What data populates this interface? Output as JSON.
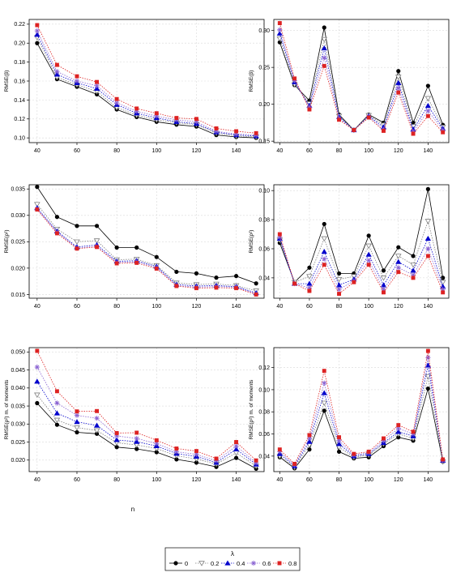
{
  "figure": {
    "xlabel": "n",
    "legend": {
      "title": "λ",
      "placement": "bottom-center",
      "entries": [
        {
          "label": "0",
          "color": "#000000",
          "marker": "circle",
          "line": "solid"
        },
        {
          "label": "0.2",
          "color": "#7f7f7f",
          "marker": "triangle-down",
          "line": "dotted"
        },
        {
          "label": "0.4",
          "color": "#0000cc",
          "marker": "triangle-up",
          "line": "dotted"
        },
        {
          "label": "0.6",
          "color": "#8a63d2",
          "marker": "star",
          "line": "dotted"
        },
        {
          "label": "0.8",
          "color": "#dd2222",
          "marker": "square",
          "line": "dotted"
        }
      ]
    }
  },
  "chart_data": [
    {
      "type": "line",
      "ylabel": "RMSE(β)",
      "x": [
        40,
        50,
        60,
        70,
        80,
        90,
        100,
        110,
        120,
        130,
        140,
        150
      ],
      "xticks": [
        40,
        60,
        80,
        100,
        120,
        140
      ],
      "xlim": [
        36,
        154
      ],
      "yticks": [
        0.1,
        0.12,
        0.14,
        0.16,
        0.18,
        0.2,
        0.22
      ],
      "ytick_labels": [
        "0.10",
        "0.12",
        "0.14",
        "0.16",
        "0.18",
        "0.20",
        "0.22"
      ],
      "ylim": [
        0.095,
        0.225
      ],
      "grid": true,
      "series": [
        {
          "name": "0",
          "values": [
            0.2,
            0.162,
            0.154,
            0.146,
            0.13,
            0.122,
            0.117,
            0.114,
            0.112,
            0.103,
            0.101,
            0.1
          ]
        },
        {
          "name": "0.2",
          "values": [
            0.206,
            0.164,
            0.156,
            0.149,
            0.132,
            0.124,
            0.119,
            0.116,
            0.114,
            0.105,
            0.102,
            0.101
          ]
        },
        {
          "name": "0.4",
          "values": [
            0.209,
            0.167,
            0.158,
            0.152,
            0.135,
            0.126,
            0.121,
            0.117,
            0.115,
            0.106,
            0.103,
            0.102
          ]
        },
        {
          "name": "0.6",
          "values": [
            0.213,
            0.17,
            0.16,
            0.155,
            0.137,
            0.128,
            0.123,
            0.119,
            0.117,
            0.107,
            0.104,
            0.103
          ]
        },
        {
          "name": "0.8",
          "values": [
            0.219,
            0.177,
            0.165,
            0.159,
            0.141,
            0.131,
            0.126,
            0.121,
            0.12,
            0.11,
            0.107,
            0.105
          ]
        }
      ]
    },
    {
      "type": "line",
      "ylabel": "RMSE(β)",
      "x": [
        40,
        50,
        60,
        70,
        80,
        90,
        100,
        110,
        120,
        130,
        140,
        150
      ],
      "xticks": [
        40,
        60,
        80,
        100,
        120,
        140
      ],
      "xlim": [
        36,
        154
      ],
      "yticks": [
        0.15,
        0.2,
        0.25,
        0.3
      ],
      "ytick_labels": [
        "0.15",
        "0.20",
        "0.25",
        "0.30"
      ],
      "ylim": [
        0.148,
        0.315
      ],
      "grid": true,
      "series": [
        {
          "name": "0",
          "values": [
            0.284,
            0.226,
            0.205,
            0.304,
            0.186,
            0.165,
            0.186,
            0.175,
            0.245,
            0.175,
            0.225,
            0.172
          ]
        },
        {
          "name": "0.2",
          "values": [
            0.289,
            0.227,
            0.201,
            0.288,
            0.184,
            0.165,
            0.185,
            0.172,
            0.237,
            0.17,
            0.208,
            0.169
          ]
        },
        {
          "name": "0.4",
          "values": [
            0.296,
            0.23,
            0.198,
            0.276,
            0.183,
            0.165,
            0.184,
            0.169,
            0.229,
            0.166,
            0.198,
            0.167
          ]
        },
        {
          "name": "0.6",
          "values": [
            0.301,
            0.232,
            0.196,
            0.263,
            0.181,
            0.165,
            0.183,
            0.166,
            0.222,
            0.163,
            0.191,
            0.165
          ]
        },
        {
          "name": "0.8",
          "values": [
            0.31,
            0.235,
            0.193,
            0.252,
            0.179,
            0.165,
            0.182,
            0.164,
            0.216,
            0.16,
            0.184,
            0.162
          ]
        }
      ]
    },
    {
      "type": "line",
      "ylabel": "RMSE(ρ²)",
      "x": [
        40,
        50,
        60,
        70,
        80,
        90,
        100,
        110,
        120,
        130,
        140,
        150
      ],
      "xticks": [
        40,
        60,
        80,
        100,
        120,
        140
      ],
      "xlim": [
        36,
        154
      ],
      "yticks": [
        0.015,
        0.02,
        0.025,
        0.03,
        0.035
      ],
      "ytick_labels": [
        "0.015",
        "0.020",
        "0.025",
        "0.030",
        "0.035"
      ],
      "ylim": [
        0.0143,
        0.0358
      ],
      "grid": true,
      "series": [
        {
          "name": "0",
          "values": [
            0.0354,
            0.0297,
            0.028,
            0.028,
            0.0239,
            0.0239,
            0.0221,
            0.0193,
            0.019,
            0.0182,
            0.0185,
            0.0171
          ]
        },
        {
          "name": "0.2",
          "values": [
            0.0321,
            0.0274,
            0.025,
            0.0252,
            0.0216,
            0.0217,
            0.0205,
            0.0172,
            0.0169,
            0.017,
            0.0167,
            0.0157
          ]
        },
        {
          "name": "0.4",
          "values": [
            0.0314,
            0.027,
            0.024,
            0.0244,
            0.0213,
            0.0214,
            0.0203,
            0.0169,
            0.0166,
            0.0167,
            0.0165,
            0.0153
          ]
        },
        {
          "name": "0.6",
          "values": [
            0.0312,
            0.0268,
            0.0238,
            0.0241,
            0.0211,
            0.0212,
            0.0201,
            0.0167,
            0.0164,
            0.0165,
            0.0164,
            0.0151
          ]
        },
        {
          "name": "0.8",
          "values": [
            0.0311,
            0.0266,
            0.0237,
            0.024,
            0.0209,
            0.021,
            0.0199,
            0.0166,
            0.0162,
            0.0163,
            0.0162,
            0.015
          ]
        }
      ]
    },
    {
      "type": "line",
      "ylabel": "RMSE(ρ²)",
      "x": [
        40,
        50,
        60,
        70,
        80,
        90,
        100,
        110,
        120,
        130,
        140,
        150
      ],
      "xticks": [
        40,
        60,
        80,
        100,
        120,
        140
      ],
      "xlim": [
        36,
        154
      ],
      "yticks": [
        0.04,
        0.06,
        0.08,
        0.1
      ],
      "ytick_labels": [
        "0.04",
        "0.06",
        "0.08",
        "0.10"
      ],
      "ylim": [
        0.026,
        0.104
      ],
      "grid": true,
      "series": [
        {
          "name": "0",
          "values": [
            0.064,
            0.037,
            0.047,
            0.077,
            0.043,
            0.043,
            0.069,
            0.045,
            0.061,
            0.055,
            0.101,
            0.04
          ]
        },
        {
          "name": "0.2",
          "values": [
            0.066,
            0.037,
            0.041,
            0.067,
            0.039,
            0.041,
            0.062,
            0.04,
            0.055,
            0.049,
            0.079,
            0.037
          ]
        },
        {
          "name": "0.4",
          "values": [
            0.067,
            0.036,
            0.036,
            0.058,
            0.035,
            0.039,
            0.056,
            0.035,
            0.051,
            0.045,
            0.067,
            0.034
          ]
        },
        {
          "name": "0.6",
          "values": [
            0.068,
            0.036,
            0.033,
            0.053,
            0.032,
            0.038,
            0.052,
            0.032,
            0.047,
            0.042,
            0.06,
            0.032
          ]
        },
        {
          "name": "0.8",
          "values": [
            0.07,
            0.036,
            0.031,
            0.049,
            0.029,
            0.037,
            0.049,
            0.03,
            0.044,
            0.04,
            0.055,
            0.03
          ]
        }
      ]
    },
    {
      "type": "line",
      "ylabel": "RMSE(ρ²) m. of moments",
      "x": [
        40,
        50,
        60,
        70,
        80,
        90,
        100,
        110,
        120,
        130,
        140,
        150
      ],
      "xticks": [
        40,
        60,
        80,
        100,
        120,
        140
      ],
      "xlim": [
        36,
        154
      ],
      "yticks": [
        0.02,
        0.025,
        0.03,
        0.035,
        0.04,
        0.045,
        0.05
      ],
      "ytick_labels": [
        "0.020",
        "0.025",
        "0.030",
        "0.035",
        "0.040",
        "0.045",
        "0.050"
      ],
      "ylim": [
        0.0168,
        0.0512
      ],
      "grid": true,
      "series": [
        {
          "name": "0",
          "values": [
            0.0358,
            0.0298,
            0.0277,
            0.0273,
            0.0236,
            0.0231,
            0.0222,
            0.0202,
            0.0193,
            0.0181,
            0.0206,
            0.0176
          ]
        },
        {
          "name": "0.2",
          "values": [
            0.0381,
            0.0311,
            0.029,
            0.0282,
            0.0248,
            0.0242,
            0.0232,
            0.0212,
            0.0203,
            0.0189,
            0.022,
            0.0183
          ]
        },
        {
          "name": "0.4",
          "values": [
            0.0418,
            0.033,
            0.0306,
            0.0296,
            0.0256,
            0.0251,
            0.0239,
            0.0218,
            0.021,
            0.0193,
            0.023,
            0.0188
          ]
        },
        {
          "name": "0.6",
          "values": [
            0.0458,
            0.0358,
            0.0324,
            0.0316,
            0.0267,
            0.026,
            0.0246,
            0.0223,
            0.0216,
            0.0198,
            0.0239,
            0.0192
          ]
        },
        {
          "name": "0.8",
          "values": [
            0.0503,
            0.0391,
            0.0335,
            0.0336,
            0.0275,
            0.0276,
            0.0255,
            0.0232,
            0.0225,
            0.0204,
            0.025,
            0.0199
          ]
        }
      ]
    },
    {
      "type": "line",
      "ylabel": "RMSE(ρ²) m. of moments",
      "x": [
        40,
        50,
        60,
        70,
        80,
        90,
        100,
        110,
        120,
        130,
        140,
        150
      ],
      "xticks": [
        40,
        60,
        80,
        100,
        120,
        140
      ],
      "xlim": [
        36,
        154
      ],
      "yticks": [
        0.04,
        0.06,
        0.08,
        0.1,
        0.12
      ],
      "ytick_labels": [
        "0.04",
        "0.06",
        "0.08",
        "0.10",
        "0.12"
      ],
      "ylim": [
        0.026,
        0.138
      ],
      "grid": true,
      "series": [
        {
          "name": "0",
          "values": [
            0.039,
            0.029,
            0.046,
            0.081,
            0.044,
            0.038,
            0.039,
            0.049,
            0.057,
            0.054,
            0.101,
            0.035
          ]
        },
        {
          "name": "0.2",
          "values": [
            0.04,
            0.03,
            0.05,
            0.088,
            0.048,
            0.039,
            0.041,
            0.051,
            0.06,
            0.056,
            0.112,
            0.035
          ]
        },
        {
          "name": "0.4",
          "values": [
            0.042,
            0.031,
            0.053,
            0.097,
            0.051,
            0.04,
            0.042,
            0.052,
            0.062,
            0.058,
            0.122,
            0.036
          ]
        },
        {
          "name": "0.6",
          "values": [
            0.044,
            0.032,
            0.056,
            0.106,
            0.054,
            0.041,
            0.043,
            0.054,
            0.065,
            0.06,
            0.129,
            0.036
          ]
        },
        {
          "name": "0.8",
          "values": [
            0.046,
            0.033,
            0.059,
            0.117,
            0.057,
            0.042,
            0.044,
            0.056,
            0.068,
            0.062,
            0.135,
            0.037
          ]
        }
      ]
    }
  ]
}
